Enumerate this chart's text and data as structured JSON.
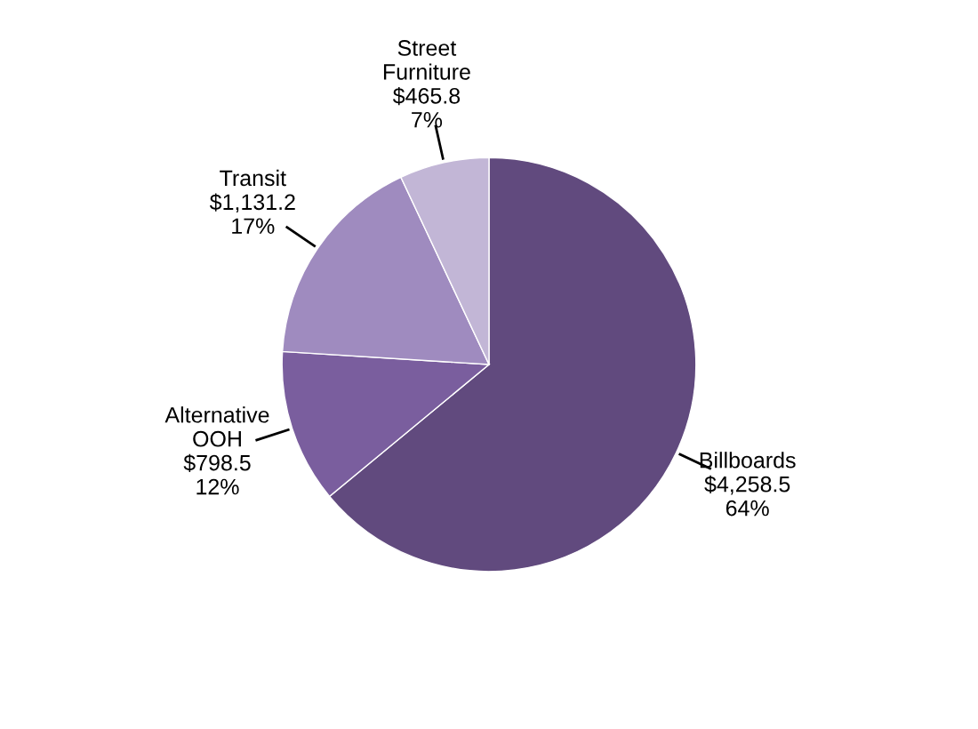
{
  "chart_data": {
    "type": "pie",
    "categories": [
      "Billboards",
      "Alternative\nOOH",
      "Transit",
      "Street\nFurniture"
    ],
    "values": [
      4258.5,
      798.5,
      1131.2,
      465.8
    ],
    "colors": [
      "#614a7e",
      "#7a5e9e",
      "#9f8bbf",
      "#c2b6d6"
    ],
    "value_labels": [
      "$4,258.5\n64%",
      "$798.5\n12%",
      "$1,131.2\n17%",
      "$465.8\n7%"
    ]
  }
}
